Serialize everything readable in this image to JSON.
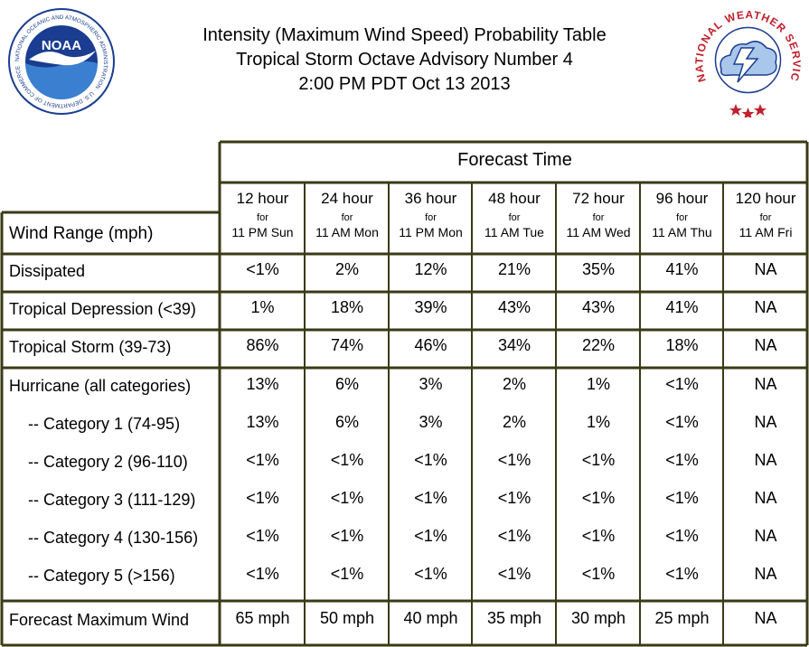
{
  "title": {
    "line1": "Intensity (Maximum Wind Speed) Probability Table",
    "line2": "Tropical Storm Octave Advisory Number 4",
    "line3": "2:00 PM PDT Oct 13 2013"
  },
  "logos": {
    "noaa": {
      "center_text": "NOAA",
      "ring_text": "NATIONAL OCEANIC AND ATMOSPHERIC ADMINISTRATION · U.S. DEPARTMENT OF COMMERCE",
      "colors": {
        "ring": "#ffffff",
        "sky": "#1a3d91",
        "water": "#3a7fd0",
        "bird": "#ffffff"
      }
    },
    "nws": {
      "ring_text": "NATIONAL WEATHER SERVICE",
      "colors": {
        "text": "#c0202c",
        "cloud": "#a9c7ea",
        "bolt": "#ffffff",
        "star": "#c0202c"
      }
    }
  },
  "table": {
    "forecast_time_label": "Forecast Time",
    "row_header_label": "Wind Range (mph)",
    "for_label": "for",
    "columns": [
      {
        "hour": "12 hour",
        "when": "11 PM Sun"
      },
      {
        "hour": "24 hour",
        "when": "11 AM Mon"
      },
      {
        "hour": "36 hour",
        "when": "11 PM Mon"
      },
      {
        "hour": "48 hour",
        "when": "11 AM Tue"
      },
      {
        "hour": "72 hour",
        "when": "11 AM Wed"
      },
      {
        "hour": "96 hour",
        "when": "11 AM Thu"
      },
      {
        "hour": "120 hour",
        "when": "11 AM Fri"
      }
    ],
    "rows": [
      {
        "label": "Dissipated",
        "values": [
          "<1%",
          "2%",
          "12%",
          "21%",
          "35%",
          "41%",
          "NA"
        ]
      },
      {
        "label": "Tropical Depression (<39)",
        "values": [
          "1%",
          "18%",
          "39%",
          "43%",
          "43%",
          "41%",
          "NA"
        ]
      },
      {
        "label": "Tropical Storm (39-73)",
        "values": [
          "86%",
          "74%",
          "46%",
          "34%",
          "22%",
          "18%",
          "NA"
        ]
      },
      {
        "label": "Hurricane (all categories)",
        "values": [
          "13%",
          "6%",
          "3%",
          "2%",
          "1%",
          "<1%",
          "NA"
        ]
      },
      {
        "label": "-- Category 1 (74-95)",
        "values": [
          "13%",
          "6%",
          "3%",
          "2%",
          "1%",
          "<1%",
          "NA"
        ]
      },
      {
        "label": "-- Category 2 (96-110)",
        "values": [
          "<1%",
          "<1%",
          "<1%",
          "<1%",
          "<1%",
          "<1%",
          "NA"
        ]
      },
      {
        "label": "-- Category 3 (111-129)",
        "values": [
          "<1%",
          "<1%",
          "<1%",
          "<1%",
          "<1%",
          "<1%",
          "NA"
        ]
      },
      {
        "label": "-- Category 4 (130-156)",
        "values": [
          "<1%",
          "<1%",
          "<1%",
          "<1%",
          "<1%",
          "<1%",
          "NA"
        ]
      },
      {
        "label": "-- Category 5 (>156)",
        "values": [
          "<1%",
          "<1%",
          "<1%",
          "<1%",
          "<1%",
          "<1%",
          "NA"
        ]
      },
      {
        "label": "Forecast Maximum Wind",
        "values": [
          "65 mph",
          "50 mph",
          "40 mph",
          "35 mph",
          "30 mph",
          "25 mph",
          "NA"
        ]
      }
    ],
    "colors": {
      "border": "#3a3a16",
      "background": "#ffffff",
      "text": "#000000"
    }
  }
}
